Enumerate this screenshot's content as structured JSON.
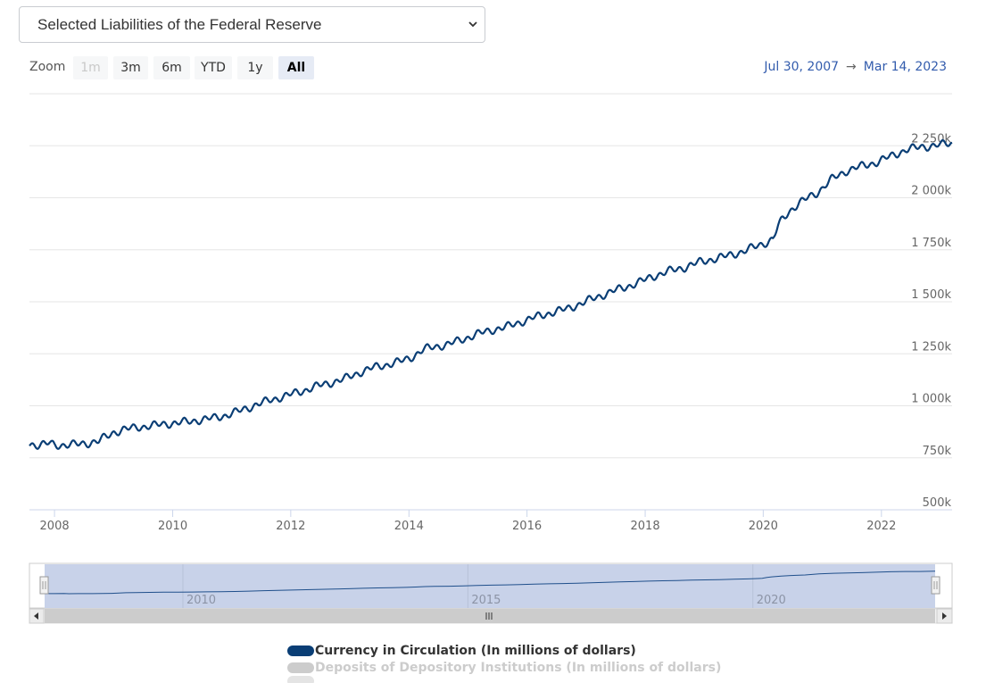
{
  "selector": {
    "value": "Selected Liabilities of the Federal Reserve"
  },
  "range_selector": {
    "zoom_label": "Zoom",
    "buttons": [
      {
        "label": "1m",
        "state": "disabled"
      },
      {
        "label": "3m",
        "state": "normal"
      },
      {
        "label": "6m",
        "state": "normal"
      },
      {
        "label": "YTD",
        "state": "normal"
      },
      {
        "label": "1y",
        "state": "normal"
      },
      {
        "label": "All",
        "state": "active"
      }
    ],
    "from": "Jul 30, 2007",
    "arrow": "→",
    "to": "Mar 14, 2023"
  },
  "colors": {
    "series_line": "#0a3e75",
    "navigator_fill": "#c8d2e9",
    "navigator_line": "#1f4f8b",
    "grid": "#e6e6e6",
    "axis_text": "#666666",
    "range_text": "#335cad"
  },
  "chart_data": {
    "type": "line",
    "title": "",
    "xlabel": "",
    "ylabel": "",
    "x_range": [
      "2007-07-30",
      "2023-03-14"
    ],
    "ylim": [
      500,
      2500
    ],
    "y_unit": "millions of dollars (shown in thousands, k)",
    "y_ticks": [
      500,
      750,
      1000,
      1250,
      1500,
      1750,
      2000,
      2250
    ],
    "y_tick_labels": [
      "500k",
      "750k",
      "1 000k",
      "1 250k",
      "1 500k",
      "1 750k",
      "2 000k",
      "2 250k"
    ],
    "x_ticks": [
      2008,
      2010,
      2012,
      2014,
      2016,
      2018,
      2020,
      2022
    ],
    "x_tick_labels": [
      "2008",
      "2010",
      "2012",
      "2014",
      "2016",
      "2018",
      "2020",
      "2022"
    ],
    "grid": true,
    "series": [
      {
        "name": "Currency in Circulation (In millions of dollars)",
        "visible": true,
        "points": [
          [
            "2007-07-30",
            815
          ],
          [
            "2007-10-01",
            812
          ],
          [
            "2007-12-01",
            820
          ],
          [
            "2008-01-01",
            810
          ],
          [
            "2008-03-01",
            812
          ],
          [
            "2008-06-01",
            815
          ],
          [
            "2008-08-01",
            822
          ],
          [
            "2008-10-01",
            830
          ],
          [
            "2008-11-01",
            845
          ],
          [
            "2009-01-01",
            872
          ],
          [
            "2009-03-01",
            885
          ],
          [
            "2009-06-01",
            897
          ],
          [
            "2009-09-01",
            905
          ],
          [
            "2009-12-01",
            914
          ],
          [
            "2010-03-01",
            920
          ],
          [
            "2010-06-01",
            930
          ],
          [
            "2010-09-01",
            940
          ],
          [
            "2010-12-01",
            955
          ],
          [
            "2011-03-01",
            978
          ],
          [
            "2011-06-01",
            1005
          ],
          [
            "2011-09-01",
            1028
          ],
          [
            "2011-12-01",
            1048
          ],
          [
            "2012-03-01",
            1068
          ],
          [
            "2012-06-01",
            1092
          ],
          [
            "2012-09-01",
            1110
          ],
          [
            "2012-12-01",
            1130
          ],
          [
            "2013-03-01",
            1160
          ],
          [
            "2013-06-01",
            1185
          ],
          [
            "2013-09-01",
            1200
          ],
          [
            "2013-12-01",
            1218
          ],
          [
            "2014-02-01",
            1240
          ],
          [
            "2014-04-01",
            1270
          ],
          [
            "2014-06-01",
            1283
          ],
          [
            "2014-09-01",
            1295
          ],
          [
            "2014-12-01",
            1320
          ],
          [
            "2015-03-01",
            1345
          ],
          [
            "2015-06-01",
            1365
          ],
          [
            "2015-09-01",
            1380
          ],
          [
            "2015-12-01",
            1405
          ],
          [
            "2016-03-01",
            1428
          ],
          [
            "2016-06-01",
            1448
          ],
          [
            "2016-09-01",
            1465
          ],
          [
            "2016-12-01",
            1492
          ],
          [
            "2017-03-01",
            1520
          ],
          [
            "2017-06-01",
            1547
          ],
          [
            "2017-09-01",
            1570
          ],
          [
            "2017-12-01",
            1596
          ],
          [
            "2018-03-01",
            1625
          ],
          [
            "2018-06-01",
            1648
          ],
          [
            "2018-09-01",
            1665
          ],
          [
            "2018-12-01",
            1690
          ],
          [
            "2019-03-01",
            1706
          ],
          [
            "2019-06-01",
            1722
          ],
          [
            "2019-09-01",
            1743
          ],
          [
            "2019-12-01",
            1770
          ],
          [
            "2020-02-01",
            1790
          ],
          [
            "2020-03-01",
            1800
          ],
          [
            "2020-04-01",
            1860
          ],
          [
            "2020-05-01",
            1900
          ],
          [
            "2020-07-01",
            1950
          ],
          [
            "2020-09-01",
            1985
          ],
          [
            "2020-12-01",
            2025
          ],
          [
            "2021-03-01",
            2090
          ],
          [
            "2021-06-01",
            2130
          ],
          [
            "2021-09-01",
            2152
          ],
          [
            "2021-12-01",
            2170
          ],
          [
            "2022-03-01",
            2200
          ],
          [
            "2022-06-01",
            2230
          ],
          [
            "2022-09-01",
            2245
          ],
          [
            "2022-12-01",
            2250
          ],
          [
            "2023-03-14",
            2265
          ]
        ]
      },
      {
        "name": "Deposits of Depository Institutions (In millions of dollars)",
        "visible": false,
        "points": []
      },
      {
        "name": "",
        "visible": false,
        "points": []
      }
    ],
    "navigator": {
      "x_ticks": [
        2010,
        2015,
        2020
      ],
      "x_tick_labels": [
        "2010",
        "2015",
        "2020"
      ]
    }
  },
  "legend": {
    "items": [
      {
        "label": "Currency in Circulation (In millions of dollars)",
        "visible": true
      },
      {
        "label": "Deposits of Depository Institutions (In millions of dollars)",
        "visible": false
      }
    ]
  }
}
